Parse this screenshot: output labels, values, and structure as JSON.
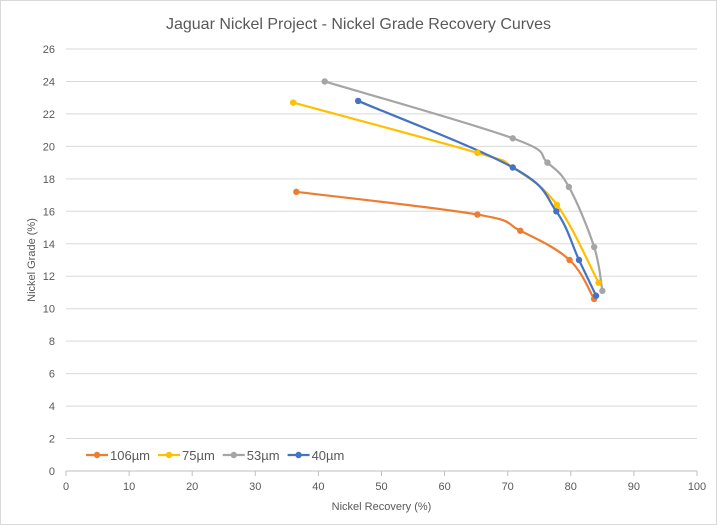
{
  "chart_data": {
    "type": "line",
    "title": "Jaguar Nickel Project - Nickel Grade Recovery Curves",
    "xlabel": "Nickel Recovery (%)",
    "ylabel": "Nickel Grade (%)",
    "xlim": [
      0,
      100
    ],
    "ylim": [
      0,
      26
    ],
    "x_ticks": [
      0,
      10,
      20,
      30,
      40,
      50,
      60,
      70,
      80,
      90,
      100
    ],
    "y_ticks": [
      0,
      2,
      4,
      6,
      8,
      10,
      12,
      14,
      16,
      18,
      20,
      22,
      24,
      26
    ],
    "grid": "horizontal",
    "legend_position": "bottom-left",
    "series": [
      {
        "name": "106µm",
        "color": "#ED7D31",
        "x": [
          36.5,
          65.2,
          72.0,
          79.8,
          83.7
        ],
        "y": [
          17.2,
          15.8,
          14.8,
          13.0,
          10.6
        ]
      },
      {
        "name": "75µm",
        "color": "#FFC000",
        "x": [
          36.0,
          65.2,
          70.8,
          77.8,
          84.4
        ],
        "y": [
          22.7,
          19.6,
          18.7,
          16.4,
          11.6
        ]
      },
      {
        "name": "53µm",
        "color": "#A5A5A5",
        "x": [
          41.0,
          70.8,
          76.3,
          79.7,
          83.7,
          85.0
        ],
        "y": [
          24.0,
          20.5,
          19.0,
          17.5,
          13.8,
          11.1
        ]
      },
      {
        "name": "40µm",
        "color": "#4472C4",
        "x": [
          46.3,
          70.8,
          77.7,
          81.3,
          84.0
        ],
        "y": [
          22.8,
          18.7,
          16.0,
          13.0,
          10.8
        ]
      }
    ]
  }
}
